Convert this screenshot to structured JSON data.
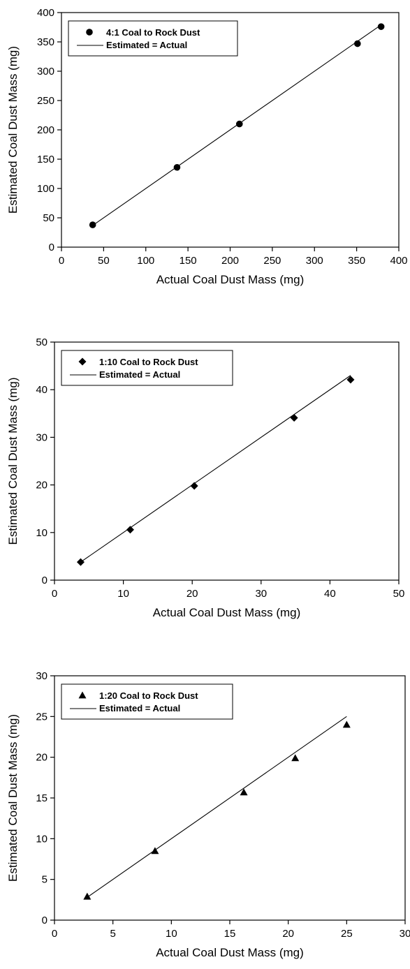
{
  "chart_data": [
    {
      "type": "scatter",
      "xlabel": "Actual Coal Dust Mass (mg)",
      "ylabel": "Estimated Coal Dust Mass (mg)",
      "xlim": [
        0,
        400
      ],
      "ylim": [
        0,
        400
      ],
      "xticks": [
        "0",
        "50",
        "100",
        "150",
        "200",
        "250",
        "300",
        "350",
        "400"
      ],
      "yticks": [
        "0",
        "50",
        "100",
        "150",
        "200",
        "250",
        "300",
        "350",
        "400"
      ],
      "grid": false,
      "legend_position": "top-left",
      "marker": "circle",
      "series": [
        {
          "name": "4:1 Coal to Rock Dust",
          "kind": "scatter",
          "x": [
            37,
            137,
            211,
            351,
            379
          ],
          "y": [
            38,
            136,
            210,
            347,
            376
          ]
        },
        {
          "name": "Estimated = Actual",
          "kind": "line",
          "x": [
            37,
            379
          ],
          "y": [
            37,
            379
          ]
        }
      ]
    },
    {
      "type": "scatter",
      "xlabel": "Actual Coal Dust Mass (mg)",
      "ylabel": "Estimated Coal Dust Mass (mg)",
      "xlim": [
        0,
        50
      ],
      "ylim": [
        0,
        50
      ],
      "xticks": [
        "0",
        "10",
        "20",
        "30",
        "40",
        "50"
      ],
      "yticks": [
        "0",
        "10",
        "20",
        "30",
        "40",
        "50"
      ],
      "grid": false,
      "legend_position": "top-left",
      "marker": "diamond",
      "series": [
        {
          "name": "1:10 Coal to Rock Dust",
          "kind": "scatter",
          "x": [
            3.8,
            11.0,
            20.3,
            34.8,
            43.0
          ],
          "y": [
            3.8,
            10.6,
            19.8,
            34.1,
            42.1
          ]
        },
        {
          "name": "Estimated = Actual",
          "kind": "line",
          "x": [
            3.8,
            43.0
          ],
          "y": [
            3.8,
            43.0
          ]
        }
      ]
    },
    {
      "type": "scatter",
      "xlabel": "Actual Coal Dust Mass (mg)",
      "ylabel": "Estimated Coal Dust Mass (mg)",
      "xlim": [
        0,
        30
      ],
      "ylim": [
        0,
        30
      ],
      "xticks": [
        "0",
        "5",
        "10",
        "15",
        "20",
        "25",
        "30"
      ],
      "yticks": [
        "0",
        "5",
        "10",
        "15",
        "20",
        "25",
        "30"
      ],
      "grid": false,
      "legend_position": "top-left",
      "marker": "triangle",
      "series": [
        {
          "name": "1:20 Coal to Rock Dust",
          "kind": "scatter",
          "x": [
            2.8,
            8.6,
            16.2,
            20.6,
            25.0
          ],
          "y": [
            2.9,
            8.5,
            15.7,
            19.9,
            24.0
          ]
        },
        {
          "name": "Estimated = Actual",
          "kind": "line",
          "x": [
            2.8,
            25.0
          ],
          "y": [
            2.8,
            25.0
          ]
        }
      ]
    }
  ]
}
